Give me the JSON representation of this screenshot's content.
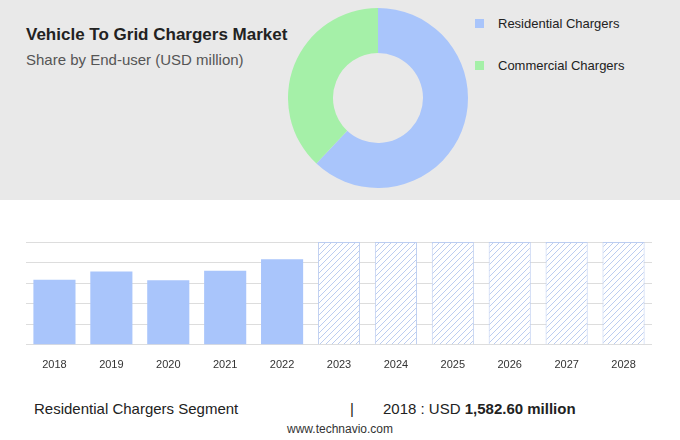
{
  "chart_data": [
    {
      "type": "doughnut",
      "title": "Vehicle To Grid Chargers Market",
      "subtitle": "Share by End-user (USD million)",
      "categories": [
        "Residential Chargers",
        "Commercial Chargers"
      ],
      "values": [
        62,
        38
      ],
      "colors": [
        "#a9c5fb",
        "#a5f0a8"
      ],
      "legend": "top right"
    },
    {
      "type": "bar",
      "categories": [
        "2018",
        "2019",
        "2020",
        "2021",
        "2022",
        "2023",
        "2024",
        "2025",
        "2026",
        "2027",
        "2028"
      ],
      "series": [
        {
          "name": "Residential Chargers",
          "color": "#a9c5fb",
          "values": [
            1582.6,
            1780,
            1570,
            1800,
            2080,
            null,
            null,
            null,
            null,
            null,
            null
          ]
        },
        {
          "name": "Residential Chargers",
          "color": "#bccdf0",
          "line_style": "hatched",
          "values": [
            null,
            null,
            null,
            null,
            null,
            2500,
            2500,
            2500,
            2500,
            2500,
            2500
          ]
        }
      ],
      "ylim": [
        0,
        2500
      ],
      "yticks": [
        0,
        500,
        1000,
        1500,
        2000,
        2500
      ],
      "grid": true,
      "tick_labels": "x"
    }
  ],
  "footer": {
    "segment": "Residential Chargers Segment",
    "separator": "|",
    "year": "2018 :",
    "currency": "USD",
    "amount": "1,582.60 million",
    "source": "www.technavio.com"
  }
}
